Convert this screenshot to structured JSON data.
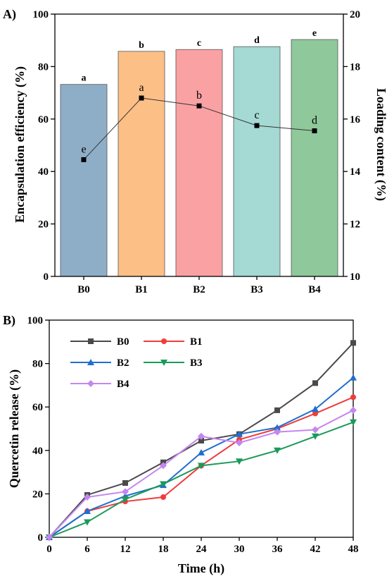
{
  "chart_data": [
    {
      "type": "bar",
      "panel_label": "A)",
      "title": "",
      "xlabel": "",
      "ylabel": "Encapsulation efficiency (%)",
      "y2label": "Loading content (%)",
      "ylim": [
        0,
        100
      ],
      "y2lim": [
        10,
        20
      ],
      "yticks": [
        0,
        20,
        40,
        60,
        80,
        100
      ],
      "y2ticks": [
        10,
        12,
        14,
        16,
        18,
        20
      ],
      "categories": [
        "B0",
        "B1",
        "B2",
        "B3",
        "B4"
      ],
      "bar_colors": [
        "#8eaec8",
        "#fcbf86",
        "#f9a1a3",
        "#a5d9d3",
        "#8fc89a"
      ],
      "series": [
        {
          "axis": "left",
          "kind": "bar",
          "values": [
            73.2,
            85.8,
            86.5,
            87.6,
            90.3
          ],
          "letters": [
            "a",
            "b",
            "c",
            "d",
            "e"
          ]
        },
        {
          "axis": "right",
          "kind": "line",
          "color": "#000000",
          "values": [
            14.45,
            16.8,
            16.5,
            15.75,
            15.55
          ],
          "letters": [
            "e",
            "a",
            "b",
            "c",
            "d"
          ]
        }
      ]
    },
    {
      "type": "line",
      "panel_label": "B)",
      "title": "",
      "xlabel": "Time (h)",
      "ylabel": "Quercetin release (%)",
      "xlim": [
        0,
        48
      ],
      "ylim": [
        0,
        100
      ],
      "x": [
        0,
        6,
        12,
        18,
        24,
        30,
        36,
        42,
        48
      ],
      "yticks": [
        0,
        20,
        40,
        60,
        80,
        100
      ],
      "legend_position": "top-left",
      "series": [
        {
          "name": "B0",
          "color": "#4a4a4a",
          "marker": "square",
          "values": [
            0,
            19.5,
            25,
            34.5,
            44.5,
            47.5,
            58.5,
            71,
            89.5
          ]
        },
        {
          "name": "B1",
          "color": "#f03c3c",
          "marker": "circle",
          "values": [
            0,
            12,
            16.5,
            18.5,
            33,
            45,
            50,
            57,
            64.5
          ]
        },
        {
          "name": "B2",
          "color": "#1f6fd0",
          "marker": "triangle-up",
          "values": [
            0,
            12,
            19,
            24,
            39,
            47.5,
            50.5,
            59,
            73.5
          ]
        },
        {
          "name": "B3",
          "color": "#1a9a5a",
          "marker": "triangle-down",
          "values": [
            0,
            7,
            17.5,
            24.5,
            33,
            35,
            40,
            46.5,
            53
          ]
        },
        {
          "name": "B4",
          "color": "#c586f0",
          "marker": "diamond",
          "values": [
            0,
            18.5,
            21,
            33,
            46.5,
            43.5,
            48.5,
            49.5,
            58.5
          ]
        }
      ]
    }
  ]
}
